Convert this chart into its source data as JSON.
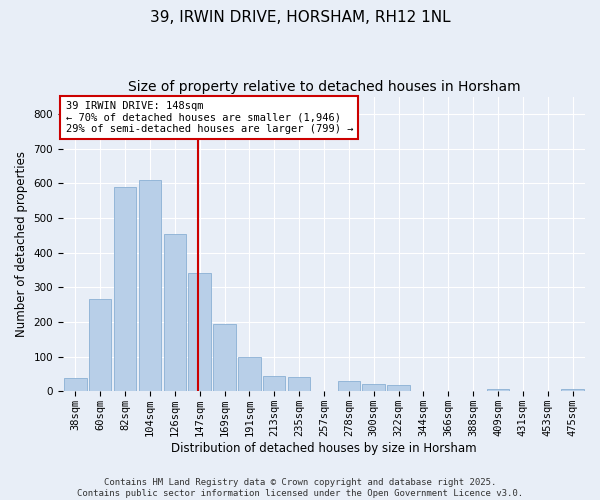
{
  "title": "39, IRWIN DRIVE, HORSHAM, RH12 1NL",
  "subtitle": "Size of property relative to detached houses in Horsham",
  "xlabel": "Distribution of detached houses by size in Horsham",
  "ylabel": "Number of detached properties",
  "categories": [
    "38sqm",
    "60sqm",
    "82sqm",
    "104sqm",
    "126sqm",
    "147sqm",
    "169sqm",
    "191sqm",
    "213sqm",
    "235sqm",
    "257sqm",
    "278sqm",
    "300sqm",
    "322sqm",
    "344sqm",
    "366sqm",
    "388sqm",
    "409sqm",
    "431sqm",
    "453sqm",
    "475sqm"
  ],
  "values": [
    38,
    265,
    590,
    610,
    455,
    340,
    195,
    100,
    45,
    40,
    0,
    30,
    20,
    18,
    0,
    0,
    0,
    7,
    0,
    0,
    7
  ],
  "bar_color": "#b8cfe8",
  "bar_edge_color": "#8ab0d4",
  "marker_line_index": 5,
  "marker_line_color": "#cc0000",
  "annotation_line1": "39 IRWIN DRIVE: 148sqm",
  "annotation_line2": "← 70% of detached houses are smaller (1,946)",
  "annotation_line3": "29% of semi-detached houses are larger (799) →",
  "annotation_box_color": "#cc0000",
  "ylim": [
    0,
    850
  ],
  "yticks": [
    0,
    100,
    200,
    300,
    400,
    500,
    600,
    700,
    800
  ],
  "background_color": "#e8eef7",
  "footer_text": "Contains HM Land Registry data © Crown copyright and database right 2025.\nContains public sector information licensed under the Open Government Licence v3.0.",
  "title_fontsize": 11,
  "subtitle_fontsize": 10,
  "axis_label_fontsize": 8.5,
  "tick_fontsize": 7.5,
  "annotation_fontsize": 7.5,
  "footer_fontsize": 6.5
}
